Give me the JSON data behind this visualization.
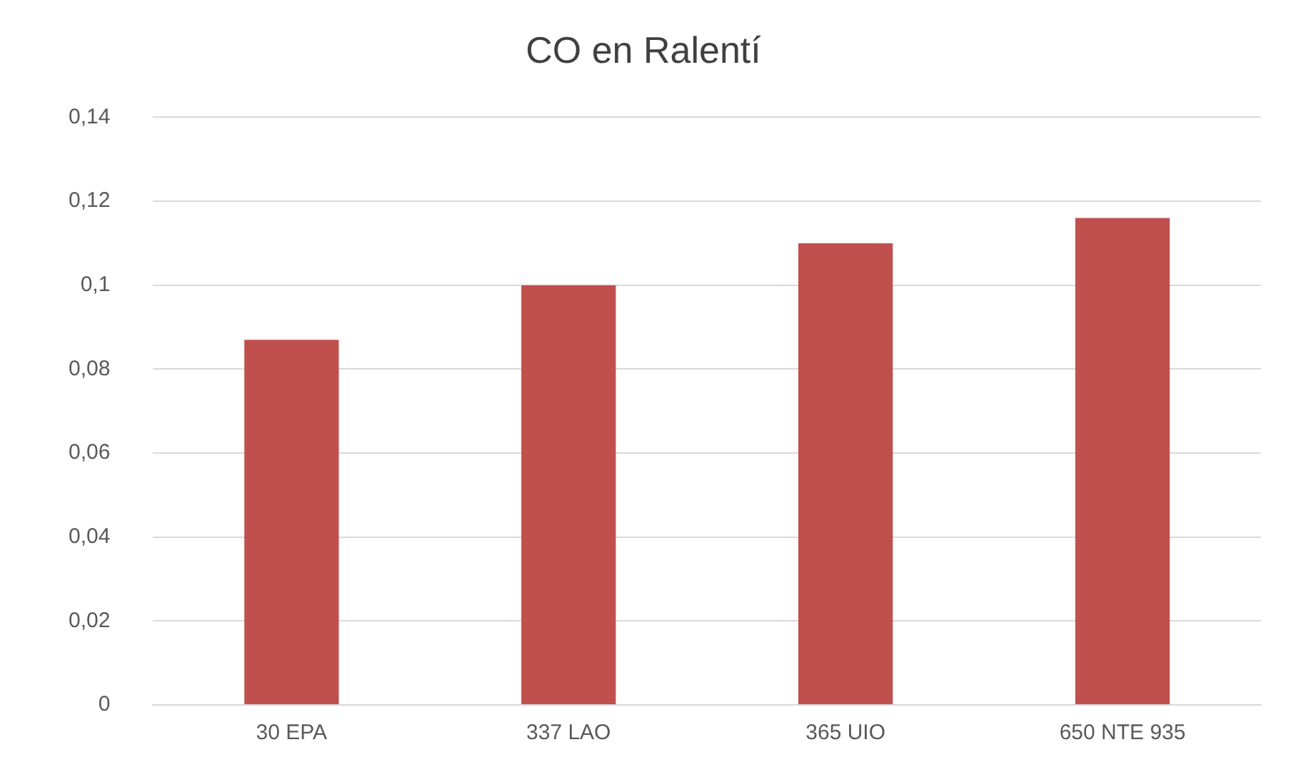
{
  "chart_data": {
    "type": "bar",
    "title": "CO en Ralentí",
    "categories": [
      "30 EPA",
      "337 LAO",
      "365 UIO",
      "650 NTE 935"
    ],
    "values": [
      0.087,
      0.1,
      0.11,
      0.116
    ],
    "color": "#c0504d",
    "ylim": [
      0,
      0.14
    ],
    "yticks": [
      0,
      {
        "value": 0.02,
        "label": "0,02"
      },
      {
        "value": 0.04,
        "label": "0,04"
      },
      {
        "value": 0.06,
        "label": "0,06"
      },
      {
        "value": 0.08,
        "label": "0,08"
      },
      {
        "value": 0.1,
        "label": "0,1"
      },
      {
        "value": 0.12,
        "label": "0,12"
      },
      {
        "value": 0.14,
        "label": "0,14"
      }
    ],
    "grid": "y"
  }
}
